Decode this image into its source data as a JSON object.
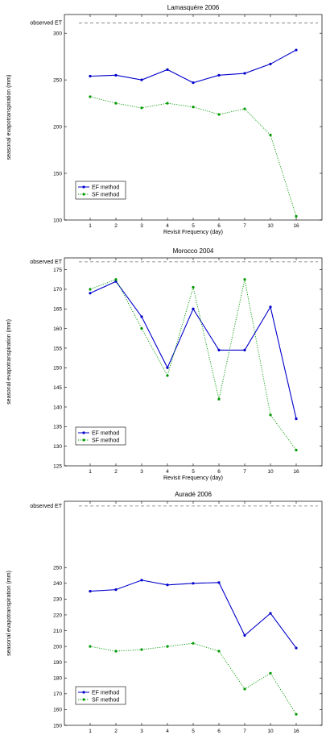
{
  "chart_data": [
    {
      "type": "line",
      "title": "Lamasquère 2006",
      "xlabel": "Revisit Frequency (day)",
      "ylabel": "seasonal evapotranspiration (mm)",
      "categories": [
        "1",
        "2",
        "3",
        "4",
        "5",
        "6",
        "7",
        "10",
        "16"
      ],
      "y_ticks": [
        100,
        150,
        200,
        250,
        300
      ],
      "ylim": [
        100,
        320
      ],
      "observed_label": "observed ET",
      "observed_value": 311,
      "series": [
        {
          "name": "EF method",
          "color": "#0000cc",
          "style": "solid",
          "values": [
            254,
            255,
            250,
            261,
            247,
            255,
            257,
            267,
            282
          ]
        },
        {
          "name": "SF method",
          "color": "#009900",
          "style": "dotted",
          "values": [
            232,
            225,
            220,
            225,
            221,
            213,
            219,
            191,
            104
          ]
        }
      ],
      "legend_position": "lower-left"
    },
    {
      "type": "line",
      "title": "Morocco 2004",
      "xlabel": "Revisit Frequency (day)",
      "ylabel": "seasonal evapotranspiration (mm)",
      "categories": [
        "1",
        "2",
        "3",
        "4",
        "5",
        "6",
        "7",
        "10",
        "16"
      ],
      "y_ticks": [
        125,
        130,
        135,
        140,
        145,
        150,
        155,
        160,
        165,
        170,
        175
      ],
      "ylim": [
        125,
        178
      ],
      "observed_label": "observed ET",
      "observed_value": 177,
      "series": [
        {
          "name": "EF method",
          "color": "#0000cc",
          "style": "solid",
          "values": [
            169,
            172,
            163,
            150,
            165,
            154.5,
            154.5,
            165.5,
            137
          ]
        },
        {
          "name": "SF method",
          "color": "#009900",
          "style": "dotted",
          "values": [
            170,
            172.5,
            160,
            148,
            170.5,
            142,
            172.5,
            138,
            129
          ]
        }
      ],
      "legend_position": "lower-left"
    },
    {
      "type": "line",
      "title": "Auradé 2006",
      "xlabel": "Revisit Frequency (day)",
      "ylabel": "seasonal evapotranspiration (mm)",
      "categories": [
        "1",
        "2",
        "3",
        "4",
        "5",
        "6",
        "7",
        "10",
        "16"
      ],
      "y_ticks": [
        150,
        160,
        170,
        180,
        190,
        200,
        210,
        220,
        230,
        240,
        250
      ],
      "ylim": [
        150,
        292
      ],
      "observed_label": "observed ET",
      "observed_value": 289,
      "series": [
        {
          "name": "EF method",
          "color": "#0000cc",
          "style": "solid",
          "values": [
            235,
            236,
            242,
            239,
            240,
            240.5,
            207,
            221,
            199
          ]
        },
        {
          "name": "SF method",
          "color": "#009900",
          "style": "dotted",
          "values": [
            200,
            197,
            198,
            200,
            202,
            197,
            173,
            183,
            157
          ]
        }
      ],
      "legend_position": "lower-left"
    }
  ]
}
